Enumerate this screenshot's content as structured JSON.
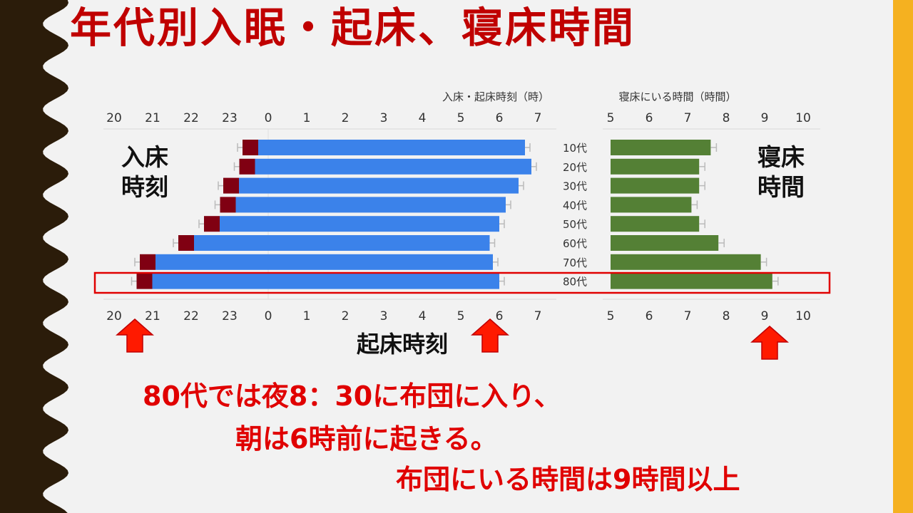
{
  "slide": {
    "title": "年代別入眠・起床、寝床時間",
    "label_bedtime": "入床\n時刻",
    "label_timeinbed": "寝床\n時間",
    "label_waketime": "起床時刻",
    "captions": [
      "80代では夜8：30に布団に入り、",
      "朝は6時前に起きる。",
      "布団にいる時間は9時間以上"
    ],
    "colors": {
      "title": "#c00000",
      "caption": "#e00000",
      "bed_bar": "#800012",
      "wake_bar": "#3b82ea",
      "duration_bar": "#548035",
      "highlight_box": "#e00000",
      "arrow": "#ff1a00",
      "right_accent": "#f5b120",
      "left_decor": "#2b1c0a"
    },
    "icons": [
      "up-arrow-icon"
    ]
  },
  "chart_data": [
    {
      "type": "bar",
      "title": "入床・起床時刻（時）",
      "categories": [
        "10代",
        "20代",
        "30代",
        "40代",
        "50代",
        "60代",
        "70代",
        "80代"
      ],
      "x_ticks": [
        "20",
        "21",
        "22",
        "23",
        "0",
        "1",
        "2",
        "3",
        "4",
        "5",
        "6",
        "7"
      ],
      "series": [
        {
          "name": "入床時刻",
          "values": [
            "23:20",
            "23:15",
            "22:50",
            "22:45",
            "22:20",
            "21:40",
            "20:40",
            "20:35"
          ]
        },
        {
          "name": "起床時刻",
          "values": [
            "6:40",
            "6:50",
            "6:30",
            "6:10",
            "6:00",
            "5:45",
            "5:50",
            "6:00"
          ]
        }
      ],
      "highlight": "80代"
    },
    {
      "type": "bar",
      "title": "寝床にいる時間（時間）",
      "categories": [
        "10代",
        "20代",
        "30代",
        "40代",
        "50代",
        "60代",
        "70代",
        "80代"
      ],
      "x_ticks": [
        "5",
        "6",
        "7",
        "8",
        "9",
        "10"
      ],
      "xlim": [
        5,
        10
      ],
      "series": [
        {
          "name": "寝床にいる時間",
          "values": [
            7.6,
            7.3,
            7.3,
            7.1,
            7.3,
            7.8,
            8.9,
            9.2
          ]
        }
      ]
    }
  ]
}
